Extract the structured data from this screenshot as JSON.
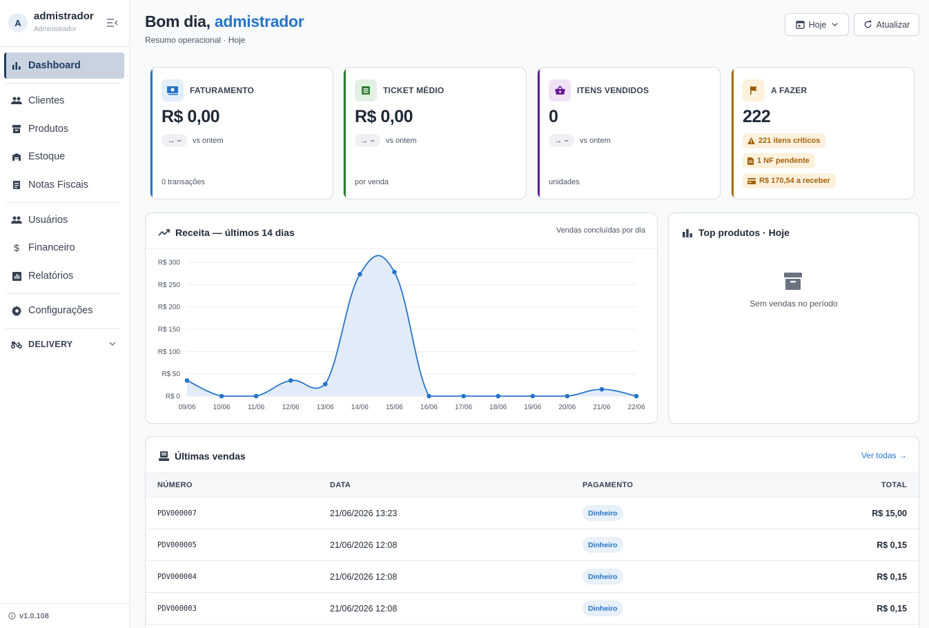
{
  "sidebar": {
    "user_initial": "A",
    "user_name": "admistrador",
    "user_role": "Administrador",
    "items": [
      {
        "label": "Dashboard",
        "icon": "bar-chart-icon"
      },
      {
        "label": "Clientes",
        "icon": "people-icon"
      },
      {
        "label": "Produtos",
        "icon": "archive-icon"
      },
      {
        "label": "Estoque",
        "icon": "warehouse-icon"
      },
      {
        "label": "Notas Fiscais",
        "icon": "receipt-icon"
      },
      {
        "label": "Usuários",
        "icon": "people-icon"
      },
      {
        "label": "Financeiro",
        "icon": "dollar-icon"
      },
      {
        "label": "Relatórios",
        "icon": "report-icon"
      },
      {
        "label": "Configurações",
        "icon": "gear-icon"
      }
    ],
    "delivery_label": "DELIVERY",
    "version": "v1.0.108"
  },
  "header": {
    "greeting": "Bom dia,",
    "name": "admistrador",
    "subtitle": "Resumo operacional · Hoje",
    "period_button": "Hoje",
    "refresh_button": "Atualizar"
  },
  "kpis": [
    {
      "label": "FATURAMENTO",
      "value": "R$ 0,00",
      "trend": "→ –",
      "trend_text": "vs ontem",
      "foot": "0 transações",
      "color": "#2774c6"
    },
    {
      "label": "TICKET MÉDIO",
      "value": "R$ 0,00",
      "trend": "→ –",
      "trend_text": "vs ontem",
      "foot": "por venda",
      "color": "#2e7d32"
    },
    {
      "label": "ITENS VENDIDOS",
      "value": "0",
      "trend": "→ –",
      "trend_text": "vs ontem",
      "foot": "unidades",
      "color": "#6a1b9a"
    },
    {
      "label": "A FAZER",
      "value": "222",
      "color": "#b26a00",
      "todos": [
        "221 itens críticos",
        "1 NF pendente",
        "R$ 170,54 a receber"
      ]
    }
  ],
  "revenue_panel": {
    "title": "Receita — últimos 14 dias",
    "subtitle": "Vendas concluídas por dia"
  },
  "chart_data": {
    "type": "area",
    "title": "Receita — últimos 14 dias",
    "categories": [
      "09/06",
      "10/06",
      "11/06",
      "12/06",
      "13/06",
      "14/06",
      "15/06",
      "16/06",
      "17/06",
      "18/06",
      "19/06",
      "20/06",
      "21/06",
      "22/06"
    ],
    "values": [
      35,
      0,
      0,
      35,
      27,
      273,
      278,
      0,
      0,
      0,
      0,
      0,
      15.3,
      0
    ],
    "y_ticks": [
      "R$ 0",
      "R$ 50",
      "R$ 100",
      "R$ 150",
      "R$ 200",
      "R$ 250",
      "R$ 300"
    ],
    "ylim": [
      0,
      300
    ],
    "grid": true,
    "line_color": "#2774c6",
    "fill_color": "#dce9f7"
  },
  "top_products": {
    "title": "Top produtos · Hoje",
    "empty_text": "Sem vendas no período"
  },
  "sales": {
    "title": "Últimas vendas",
    "see_all": "Ver todas →",
    "columns": [
      "NÚMERO",
      "DATA",
      "PAGAMENTO",
      "TOTAL"
    ],
    "rows": [
      {
        "number": "PDV000007",
        "date": "21/06/2026 13:23",
        "payment": "Dinheiro",
        "total": "R$ 15,00"
      },
      {
        "number": "PDV000005",
        "date": "21/06/2026 12:08",
        "payment": "Dinheiro",
        "total": "R$ 0,15"
      },
      {
        "number": "PDV000004",
        "date": "21/06/2026 12:08",
        "payment": "Dinheiro",
        "total": "R$ 0,15"
      },
      {
        "number": "PDV000003",
        "date": "21/06/2026 12:08",
        "payment": "Dinheiro",
        "total": "R$ 0,15"
      }
    ]
  }
}
